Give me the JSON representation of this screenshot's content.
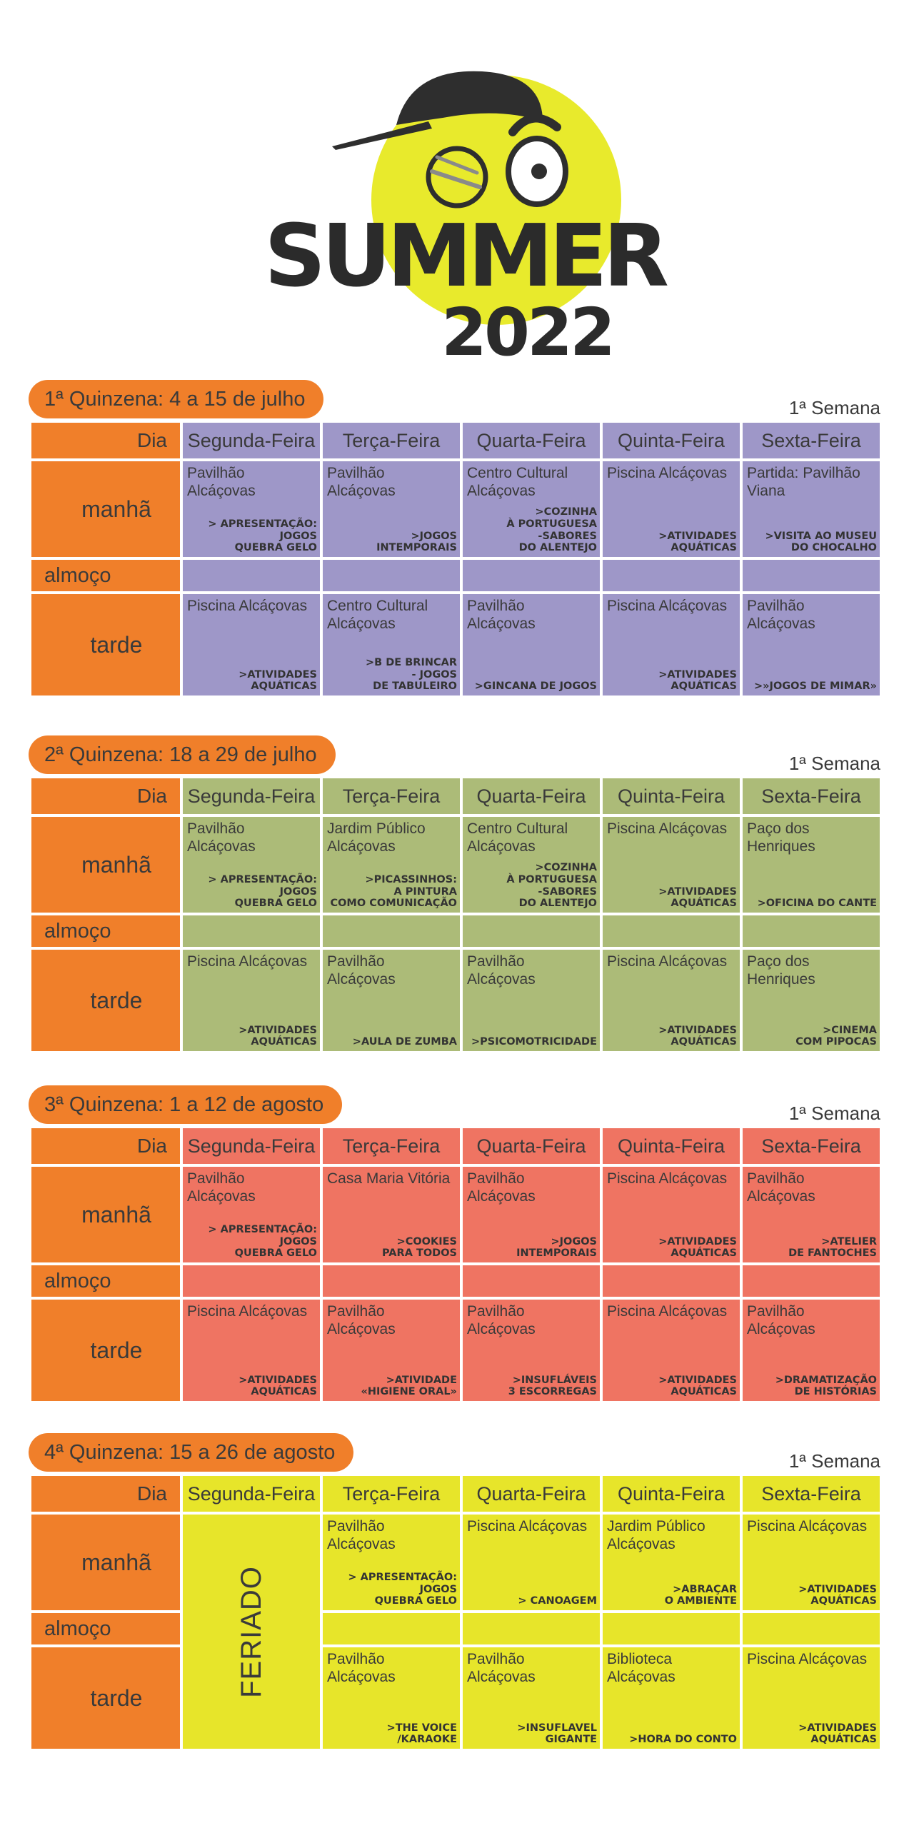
{
  "logo": {
    "word": "SUMMER",
    "year": "2022"
  },
  "day_label": "Dia",
  "row_labels": {
    "manha": "manhã",
    "almoco": "almoço",
    "tarde": "tarde"
  },
  "days": [
    "Segunda-Feira",
    "Terça-Feira",
    "Quarta-Feira",
    "Quinta-Feira",
    "Sexta-Feira"
  ],
  "colors": {
    "orange": "#f07f2a",
    "q1": "#9e97c8",
    "q2": "#acbb78",
    "q3": "#ef7462",
    "q4": "#e7e52a"
  },
  "quinzenas": [
    {
      "title": "1ª Quinzena: 4 a 15 de julho",
      "week": "1ª Semana",
      "manha": [
        {
          "place": "Pavilhão Alcáçovas",
          "activity": "> APRESENTAÇÃO:\nJOGOS\nQUEBRA GELO"
        },
        {
          "place": "Pavilhão Alcáçovas",
          "activity": ">JOGOS\nINTEMPORAIS"
        },
        {
          "place": "Centro Cultural Alcáçovas",
          "activity": ">COZINHA\nÀ PORTUGUESA\n-SABORES\nDO ALENTEJO"
        },
        {
          "place": "Piscina Alcáçovas",
          "activity": ">ATIVIDADES\nAQUÁTICAS"
        },
        {
          "place": "Partida: Pavilhão Viana",
          "activity": ">VISITA AO MUSEU\nDO CHOCALHO"
        }
      ],
      "tarde": [
        {
          "place": "Piscina Alcáçovas",
          "activity": ">ATIVIDADES\nAQUÁTICAS"
        },
        {
          "place": "Centro Cultural Alcáçovas",
          "activity": ">B DE BRINCAR\n- JOGOS\nDE TABULEIRO"
        },
        {
          "place": "Pavilhão Alcáçovas",
          "activity": ">GINCANA DE JOGOS"
        },
        {
          "place": "Piscina Alcáçovas",
          "activity": ">ATIVIDADES\nAQUÁTICAS"
        },
        {
          "place": "Pavilhão Alcáçovas",
          "activity": ">»JOGOS DE MIMAR»"
        }
      ]
    },
    {
      "title": "2ª Quinzena: 18 a 29 de julho",
      "week": "1ª Semana",
      "manha": [
        {
          "place": "Pavilhão Alcáçovas",
          "activity": "> APRESENTAÇÃO:\nJOGOS\nQUEBRA GELO"
        },
        {
          "place": "Jardim Público Alcáçovas",
          "activity": ">PICASSINHOS:\nA PINTURA\nCOMO COMUNICAÇÃO"
        },
        {
          "place": "Centro Cultural Alcáçovas",
          "activity": ">COZINHA\nÀ PORTUGUESA\n-SABORES\nDO ALENTEJO"
        },
        {
          "place": "Piscina Alcáçovas",
          "activity": ">ATIVIDADES\nAQUÁTICAS"
        },
        {
          "place": "Paço dos Henriques",
          "activity": ">OFICINA DO CANTE"
        }
      ],
      "tarde": [
        {
          "place": "Piscina Alcáçovas",
          "activity": ">ATIVIDADES\nAQUÁTICAS"
        },
        {
          "place": "Pavilhão Alcáçovas",
          "activity": ">AULA DE ZUMBA"
        },
        {
          "place": "Pavilhão Alcáçovas",
          "activity": ">PSICOMOTRICIDADE"
        },
        {
          "place": "Piscina Alcáçovas",
          "activity": ">ATIVIDADES\nAQUÁTICAS"
        },
        {
          "place": "Paço dos Henriques",
          "activity": ">CINEMA\nCOM PIPOCAS"
        }
      ]
    },
    {
      "title": "3ª Quinzena: 1 a 12 de agosto",
      "week": "1ª Semana",
      "manha": [
        {
          "place": "Pavilhão Alcáçovas",
          "activity": "> APRESENTAÇÃO:\nJOGOS\nQUEBRA GELO"
        },
        {
          "place": "Casa Maria Vitória",
          "activity": ">COOKIES\nPARA TODOS"
        },
        {
          "place": "Pavilhão Alcáçovas",
          "activity": ">JOGOS\nINTEMPORAIS"
        },
        {
          "place": "Piscina Alcáçovas",
          "activity": ">ATIVIDADES\nAQUÁTICAS"
        },
        {
          "place": "Pavilhão Alcáçovas",
          "activity": ">ATELIER\nDE FANTOCHES"
        }
      ],
      "tarde": [
        {
          "place": "Piscina Alcáçovas",
          "activity": ">ATIVIDADES\nAQUÁTICAS"
        },
        {
          "place": "Pavilhão Alcáçovas",
          "activity": ">ATIVIDADE\n«HIGIENE ORAL»"
        },
        {
          "place": "Pavilhão Alcáçovas",
          "activity": ">INSUFLÁVEIS\n3 ESCORREGAS"
        },
        {
          "place": "Piscina Alcáçovas",
          "activity": ">ATIVIDADES\nAQUÁTICAS"
        },
        {
          "place": "Pavilhão Alcáçovas",
          "activity": ">DRAMATIZAÇÃO\nDE HISTÓRIAS"
        }
      ]
    },
    {
      "title": "4ª Quinzena: 15 a 26 de agosto",
      "week": "1ª Semana",
      "feriado": "FERIADO",
      "manha": [
        null,
        {
          "place": "Pavilhão Alcáçovas",
          "activity": "> APRESENTAÇÃO:\nJOGOS\nQUEBRA GELO"
        },
        {
          "place": "Piscina Alcáçovas",
          "activity": "> CANOAGEM"
        },
        {
          "place": "Jardim Público Alcáçovas",
          "activity": ">ABRAÇAR\nO AMBIENTE"
        },
        {
          "place": "Piscina Alcáçovas",
          "activity": ">ATIVIDADES\nAQUÁTICAS"
        }
      ],
      "tarde": [
        null,
        {
          "place": "Pavilhão Alcáçovas",
          "activity": ">THE VOICE\n/KARAOKE"
        },
        {
          "place": "Pavilhão Alcáçovas",
          "activity": ">INSUFLAVEL\nGIGANTE"
        },
        {
          "place": "Biblioteca Alcáçovas",
          "activity": ">HORA DO CONTO"
        },
        {
          "place": "Piscina Alcáçovas",
          "activity": ">ATIVIDADES\nAQUÁTICAS"
        }
      ]
    }
  ]
}
